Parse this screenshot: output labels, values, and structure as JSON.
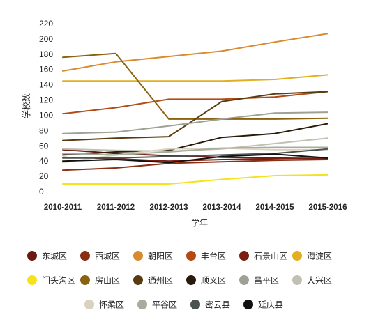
{
  "chart_data": {
    "type": "line",
    "xlabel": "学年",
    "ylabel": "学校数",
    "ylim": [
      0,
      220
    ],
    "yticks": [
      0,
      20,
      40,
      60,
      80,
      100,
      120,
      140,
      160,
      180,
      200,
      220
    ],
    "grid": false,
    "legend_position": "bottom",
    "categories": [
      "2010-2011",
      "2011-2012",
      "2012-2013",
      "2013-2014",
      "2014-2015",
      "2015-2016"
    ],
    "series": [
      {
        "name": "东城区",
        "color": "#6b1a10",
        "values": [
          55,
          50,
          47,
          45,
          44,
          43
        ]
      },
      {
        "name": "西城区",
        "color": "#8a2e14",
        "values": [
          28,
          31,
          37,
          39,
          41,
          42
        ]
      },
      {
        "name": "朝阳区",
        "color": "#d98a2c",
        "values": [
          158,
          170,
          177,
          184,
          196,
          207
        ]
      },
      {
        "name": "丰台区",
        "color": "#b24b16",
        "values": [
          102,
          110,
          121,
          121,
          124,
          131
        ]
      },
      {
        "name": "石景山区",
        "color": "#7a1f12",
        "values": [
          45,
          43,
          40,
          42,
          43,
          44
        ]
      },
      {
        "name": "海淀区",
        "color": "#e0b020",
        "values": [
          145,
          145,
          145,
          145,
          147,
          153
        ]
      },
      {
        "name": "门头沟区",
        "color": "#f4e31c",
        "values": [
          10,
          10,
          10,
          16,
          21,
          22
        ]
      },
      {
        "name": "房山区",
        "color": "#8a6210",
        "values": [
          176,
          181,
          95,
          95,
          95,
          96
        ]
      },
      {
        "name": "通州区",
        "color": "#5a3b10",
        "values": [
          67,
          70,
          72,
          118,
          128,
          131
        ]
      },
      {
        "name": "顺义区",
        "color": "#2a1a0a",
        "values": [
          48,
          52,
          54,
          71,
          76,
          89
        ]
      },
      {
        "name": "昌平区",
        "color": "#9ea194",
        "values": [
          76,
          78,
          86,
          95,
          103,
          104
        ]
      },
      {
        "name": "大兴区",
        "color": "#c2c0b2",
        "values": [
          56,
          54,
          53,
          56,
          63,
          70
        ]
      },
      {
        "name": "怀柔区",
        "color": "#d8d2be",
        "values": [
          38,
          48,
          56,
          57,
          55,
          55
        ]
      },
      {
        "name": "平谷区",
        "color": "#a7ad9c",
        "values": [
          50,
          48,
          52,
          57,
          58,
          58
        ]
      },
      {
        "name": "密云县",
        "color": "#4c5250",
        "values": [
          44,
          44,
          46,
          48,
          50,
          56
        ]
      },
      {
        "name": "延庆县",
        "color": "#111111",
        "values": [
          40,
          42,
          38,
          46,
          49,
          44
        ]
      }
    ]
  }
}
